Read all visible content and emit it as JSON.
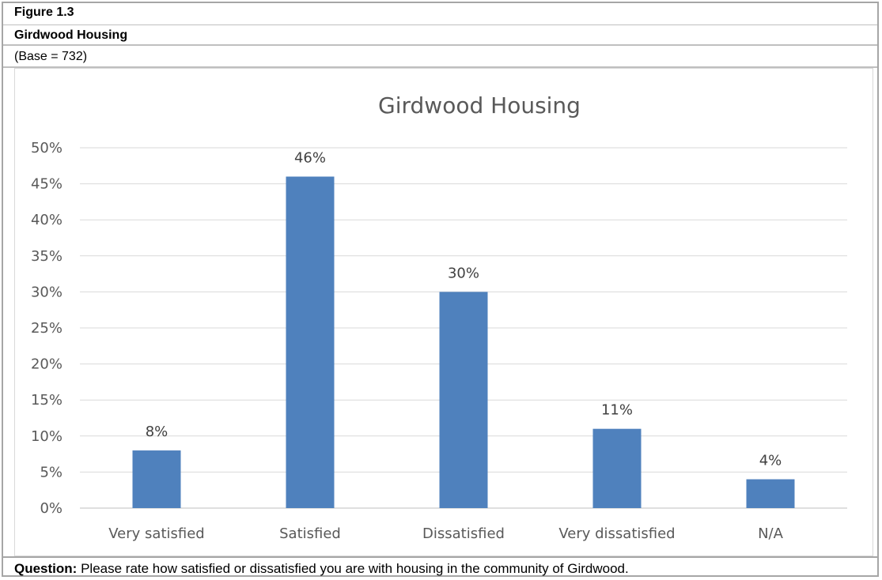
{
  "header": {
    "figure_number": "Figure 1.3",
    "figure_title": "Girdwood Housing",
    "base": "(Base = 732)"
  },
  "footer": {
    "question_label": "Question:",
    "question_text": "Please rate how satisfied or dissatisfied you are with housing in the community of Girdwood."
  },
  "chart_data": {
    "type": "bar",
    "title": "Girdwood Housing",
    "categories": [
      "Very satisfied",
      "Satisfied",
      "Dissatisfied",
      "Very dissatisfied",
      "N/A"
    ],
    "values": [
      8,
      46,
      30,
      11,
      4
    ],
    "data_labels": [
      "8%",
      "46%",
      "30%",
      "11%",
      "4%"
    ],
    "ylim": [
      0,
      50
    ],
    "yticks": [
      0,
      5,
      10,
      15,
      20,
      25,
      30,
      35,
      40,
      45,
      50
    ],
    "ytick_labels": [
      "0%",
      "5%",
      "10%",
      "15%",
      "20%",
      "25%",
      "30%",
      "35%",
      "40%",
      "45%",
      "50%"
    ],
    "xlabel": "",
    "ylabel": "",
    "grid": true,
    "legend": "none",
    "bar_color": "#4f81bd",
    "grid_color": "#d9d9d9"
  }
}
